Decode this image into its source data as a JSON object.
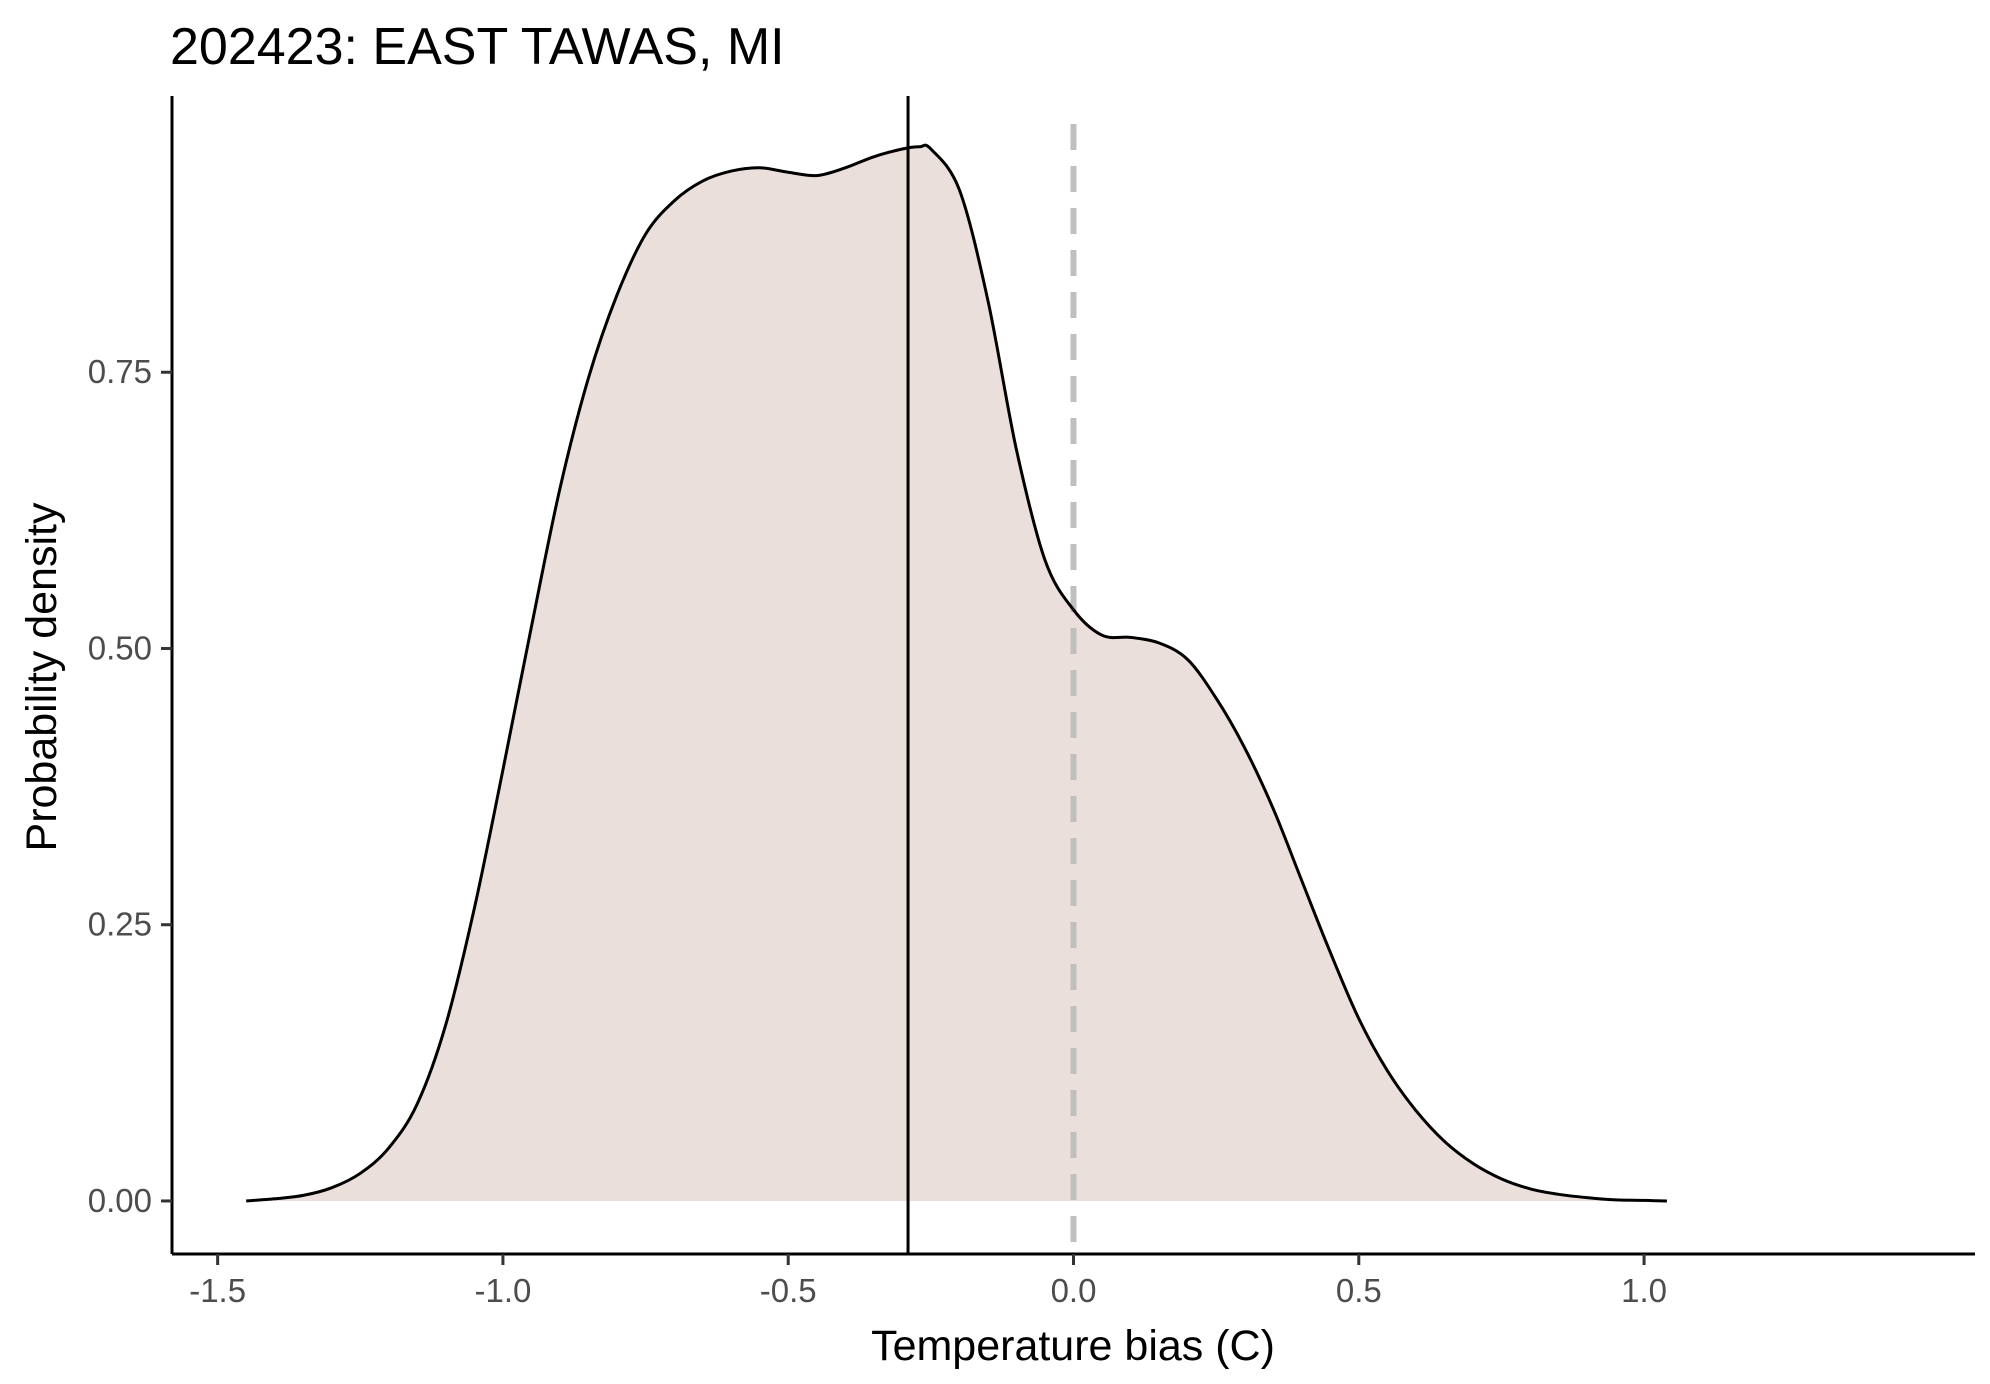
{
  "chart_data": {
    "type": "area",
    "title": "202423: EAST TAWAS, MI",
    "xlabel": "Temperature bias (C)",
    "ylabel": "Probability density",
    "xlim": [
      -1.58,
      1.58
    ],
    "ylim": [
      -0.048,
      1.0
    ],
    "x_ticks": [
      -1.5,
      -1.0,
      -0.5,
      0.0,
      0.5,
      1.0
    ],
    "x_tick_labels": [
      "-1.5",
      "-1.0",
      "-0.5",
      "0.0",
      "0.5",
      "1.0"
    ],
    "y_ticks": [
      0.0,
      0.25,
      0.5,
      0.75
    ],
    "y_tick_labels": [
      "0.00",
      "0.25",
      "0.50",
      "0.75"
    ],
    "grid": false,
    "legend": "none",
    "colors": {
      "fill": "#ebdfdc",
      "curve": "#000000",
      "mean_line": "#000000",
      "zero_line": "#bfbfbf"
    },
    "density": {
      "x": [
        -1.45,
        -1.4,
        -1.35,
        -1.3,
        -1.25,
        -1.2,
        -1.15,
        -1.1,
        -1.05,
        -1.0,
        -0.95,
        -0.9,
        -0.85,
        -0.8,
        -0.75,
        -0.7,
        -0.65,
        -0.6,
        -0.55,
        -0.5,
        -0.45,
        -0.4,
        -0.35,
        -0.3,
        -0.27,
        -0.25,
        -0.2,
        -0.15,
        -0.1,
        -0.05,
        0.0,
        0.05,
        0.1,
        0.15,
        0.2,
        0.25,
        0.3,
        0.35,
        0.4,
        0.45,
        0.5,
        0.55,
        0.6,
        0.65,
        0.7,
        0.75,
        0.8,
        0.85,
        0.9,
        0.95,
        1.0,
        1.04
      ],
      "y": [
        0.0,
        0.002,
        0.005,
        0.012,
        0.025,
        0.048,
        0.088,
        0.16,
        0.265,
        0.39,
        0.52,
        0.645,
        0.745,
        0.82,
        0.875,
        0.905,
        0.923,
        0.932,
        0.935,
        0.931,
        0.928,
        0.935,
        0.945,
        0.952,
        0.954,
        0.952,
        0.915,
        0.815,
        0.68,
        0.58,
        0.535,
        0.512,
        0.51,
        0.505,
        0.49,
        0.455,
        0.41,
        0.355,
        0.29,
        0.225,
        0.165,
        0.118,
        0.082,
        0.054,
        0.034,
        0.02,
        0.011,
        0.006,
        0.003,
        0.001,
        0.0005,
        0.0
      ]
    },
    "vlines": [
      {
        "x": -0.29,
        "style": "solid"
      },
      {
        "x": 0.0,
        "style": "dashed"
      }
    ]
  }
}
